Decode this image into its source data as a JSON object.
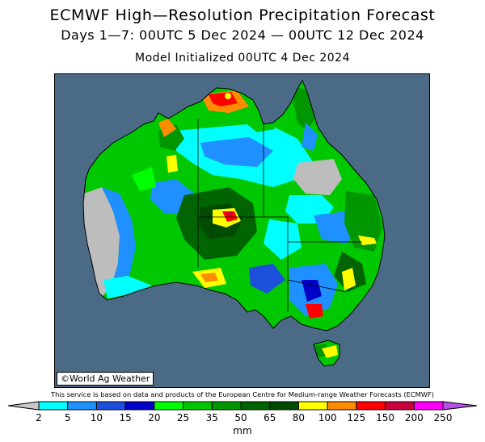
{
  "header": {
    "title": "ECMWF High—Resolution Precipitation Forecast",
    "subtitle": "Days 1—7: 00UTC 5 Dec 2024 — 00UTC 12 Dec 2024",
    "init": "Model Initialized 00UTC 4 Dec 2024"
  },
  "map": {
    "region": "Australia",
    "credit": "©World Ag Weather",
    "ocean_color": "#4b6a86",
    "land_dry_color": "#bdbdbd"
  },
  "disclaimer": "This service is based on data and products of the European Centre for Medium-range Weather Forecasts (ECMWF)",
  "colorbar": {
    "unit": "mm",
    "levels": [
      "2",
      "5",
      "10",
      "15",
      "20",
      "25",
      "35",
      "50",
      "65",
      "80",
      "100",
      "125",
      "150",
      "200",
      "250"
    ],
    "colors": [
      "#00ffff",
      "#1e90ff",
      "#1c4fdc",
      "#0000c8",
      "#00ff00",
      "#00c800",
      "#009600",
      "#006400",
      "#004b00",
      "#ffff00",
      "#ff8c00",
      "#ff0000",
      "#c8003c",
      "#ff00ff",
      "#b450e6"
    ],
    "under_color": "#c8c8c8",
    "over_color": "#b450e6"
  }
}
